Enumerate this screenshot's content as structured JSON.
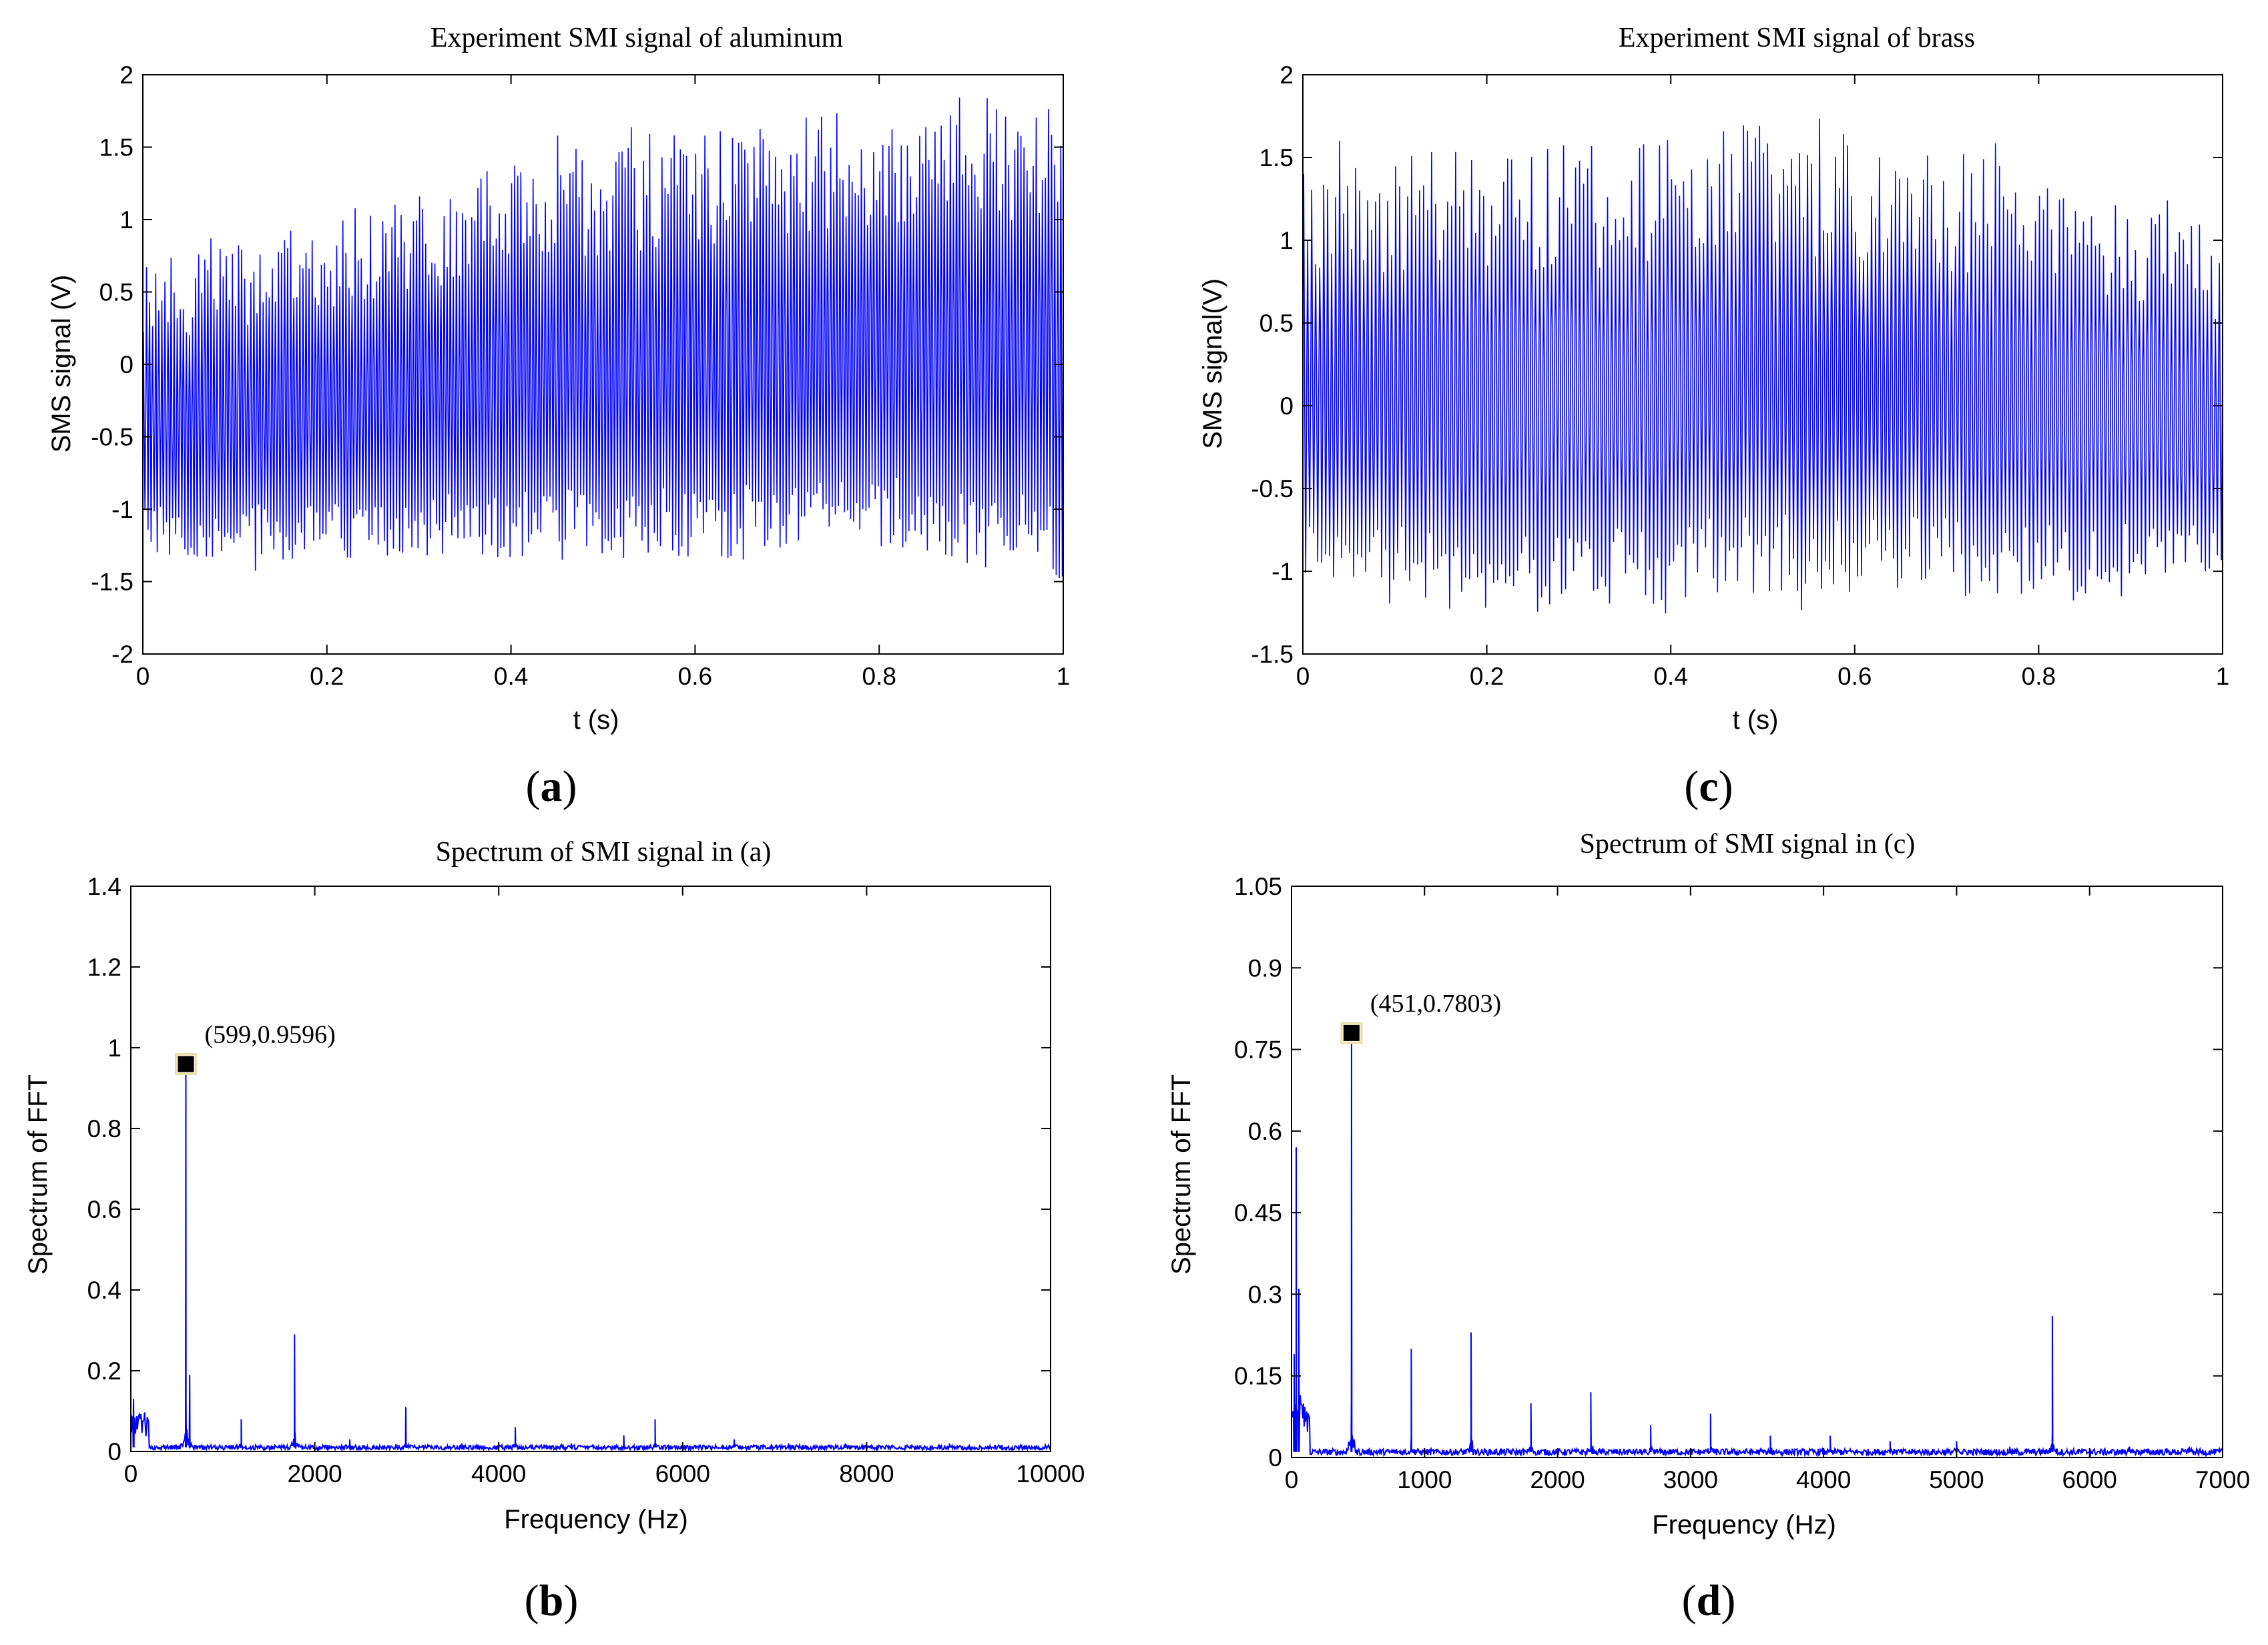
{
  "chart_data": [
    {
      "panel": "a",
      "type": "line",
      "title": "Experiment SMI signal of aluminum",
      "xlabel": "t (s)",
      "ylabel": "SMS signal (V)",
      "xlim": [
        0,
        1
      ],
      "ylim": [
        -2,
        2
      ],
      "xticks": [
        0,
        0.2,
        0.4,
        0.6,
        0.8,
        1
      ],
      "yticks": [
        -2,
        -1.5,
        -1,
        -0.5,
        0,
        0.5,
        1,
        1.5,
        2
      ],
      "xtick_labels": [
        "0",
        "0.2",
        "0.4",
        "0.6",
        "0.8",
        "1"
      ],
      "ytick_labels": [
        "-2",
        "-1.5",
        "-1",
        "-0.5",
        "0",
        "0.5",
        "1",
        "1.5",
        "2"
      ],
      "series_color": "#0000ff",
      "envelope": {
        "t": [
          0,
          0.1,
          0.2,
          0.3,
          0.4,
          0.5,
          0.6,
          0.7,
          0.75,
          0.8,
          0.9,
          1.0
        ],
        "upper": [
          0.7,
          0.85,
          1.0,
          1.2,
          1.4,
          1.55,
          1.65,
          1.7,
          1.75,
          1.8,
          1.85,
          1.9
        ],
        "lower": [
          -1.3,
          -1.35,
          -1.35,
          -1.35,
          -1.35,
          -1.35,
          -1.35,
          -1.35,
          -1.3,
          -1.3,
          -1.4,
          -1.5
        ]
      },
      "cycles": 300
    },
    {
      "panel": "c",
      "type": "line",
      "title": "Experiment SMI signal of brass",
      "xlabel": "t (s)",
      "ylabel": "SMS signal(V)",
      "xlim": [
        0,
        1
      ],
      "ylim": [
        -1.5,
        2
      ],
      "xticks": [
        0,
        0.2,
        0.4,
        0.6,
        0.8,
        1
      ],
      "yticks": [
        -1.5,
        -1,
        -0.5,
        0,
        0.5,
        1,
        1.5,
        2
      ],
      "xtick_labels": [
        "0",
        "0.2",
        "0.4",
        "0.6",
        "0.8",
        "1"
      ],
      "ytick_labels": [
        "-1.5",
        "-1",
        "-0.5",
        "0",
        "0.5",
        "1",
        "1.5",
        "2"
      ],
      "series_color": "#0000ff",
      "envelope": {
        "t": [
          0,
          0.1,
          0.2,
          0.3,
          0.4,
          0.5,
          0.6,
          0.7,
          0.8,
          0.9,
          1.0
        ],
        "upper": [
          1.5,
          1.55,
          1.6,
          1.6,
          1.65,
          1.7,
          1.65,
          1.55,
          1.4,
          1.25,
          1.05
        ],
        "lower": [
          -1.15,
          -1.2,
          -1.25,
          -1.25,
          -1.2,
          -1.15,
          -1.15,
          -1.15,
          -1.15,
          -1.1,
          -1.0
        ]
      },
      "cycles": 230
    },
    {
      "panel": "b",
      "type": "line",
      "title": "Spectrum of SMI signal in (a)",
      "xlabel": "Frequency (Hz)",
      "ylabel": "Spectrum of FFT",
      "xlim": [
        0,
        10000
      ],
      "ylim": [
        0,
        1.4
      ],
      "xticks": [
        0,
        2000,
        4000,
        6000,
        8000,
        10000
      ],
      "yticks": [
        0,
        0.2,
        0.4,
        0.6,
        0.8,
        1,
        1.2,
        1.4
      ],
      "xtick_labels": [
        "0",
        "2000",
        "4000",
        "6000",
        "8000",
        "10000"
      ],
      "ytick_labels": [
        "0",
        "0.2",
        "0.4",
        "0.6",
        "0.8",
        "1",
        "1.2",
        "1.4"
      ],
      "series_color": "#0000ff",
      "peaks": [
        {
          "f": 30,
          "a": 0.13
        },
        {
          "f": 599,
          "a": 0.9596
        },
        {
          "f": 640,
          "a": 0.19
        },
        {
          "f": 1200,
          "a": 0.08
        },
        {
          "f": 1780,
          "a": 0.29
        },
        {
          "f": 2380,
          "a": 0.03
        },
        {
          "f": 2990,
          "a": 0.11
        },
        {
          "f": 3600,
          "a": 0.02
        },
        {
          "f": 4180,
          "a": 0.06
        },
        {
          "f": 4790,
          "a": 0.02
        },
        {
          "f": 5360,
          "a": 0.04
        },
        {
          "f": 5700,
          "a": 0.08
        },
        {
          "f": 6560,
          "a": 0.03
        },
        {
          "f": 7150,
          "a": 0.02
        },
        {
          "f": 7770,
          "a": 0.02
        },
        {
          "f": 8900,
          "a": 0.02
        }
      ],
      "marker": {
        "f": 599,
        "a": 0.9596,
        "label": "(599,0.9596)"
      }
    },
    {
      "panel": "d",
      "type": "line",
      "title": "Spectrum of SMI signal in (c)",
      "xlabel": "Frequency (Hz)",
      "ylabel": "Spectrum of FFT",
      "xlim": [
        0,
        7000
      ],
      "ylim": [
        0,
        1.05
      ],
      "xticks": [
        0,
        1000,
        2000,
        3000,
        4000,
        5000,
        6000,
        7000
      ],
      "yticks": [
        0,
        0.15,
        0.3,
        0.45,
        0.6,
        0.75,
        0.9,
        1.05
      ],
      "xtick_labels": [
        "0",
        "1000",
        "2000",
        "3000",
        "4000",
        "5000",
        "6000",
        "7000"
      ],
      "ytick_labels": [
        "0",
        "0.15",
        "0.3",
        "0.45",
        "0.6",
        "0.75",
        "0.9",
        "1.05"
      ],
      "series_color": "#0000ff",
      "peaks": [
        {
          "f": 20,
          "a": 0.19
        },
        {
          "f": 35,
          "a": 0.57
        },
        {
          "f": 55,
          "a": 0.31
        },
        {
          "f": 451,
          "a": 0.7803
        },
        {
          "f": 900,
          "a": 0.2
        },
        {
          "f": 1350,
          "a": 0.23
        },
        {
          "f": 1800,
          "a": 0.1
        },
        {
          "f": 2250,
          "a": 0.12
        },
        {
          "f": 2700,
          "a": 0.06
        },
        {
          "f": 3150,
          "a": 0.08
        },
        {
          "f": 3600,
          "a": 0.04
        },
        {
          "f": 4050,
          "a": 0.04
        },
        {
          "f": 4500,
          "a": 0.03
        },
        {
          "f": 5000,
          "a": 0.03
        },
        {
          "f": 5400,
          "a": 0.02
        },
        {
          "f": 5720,
          "a": 0.26
        },
        {
          "f": 6300,
          "a": 0.02
        },
        {
          "f": 6750,
          "a": 0.02
        }
      ],
      "marker": {
        "f": 451,
        "a": 0.7803,
        "label": "(451,0.7803)"
      }
    }
  ],
  "panel_labels": {
    "a": {
      "open": "(",
      "letter": "a",
      "close": ")"
    },
    "b": {
      "open": "(",
      "letter": "b",
      "close": ")"
    },
    "c": {
      "open": "(",
      "letter": "c",
      "close": ")"
    },
    "d": {
      "open": "(",
      "letter": "d",
      "close": ")"
    }
  }
}
